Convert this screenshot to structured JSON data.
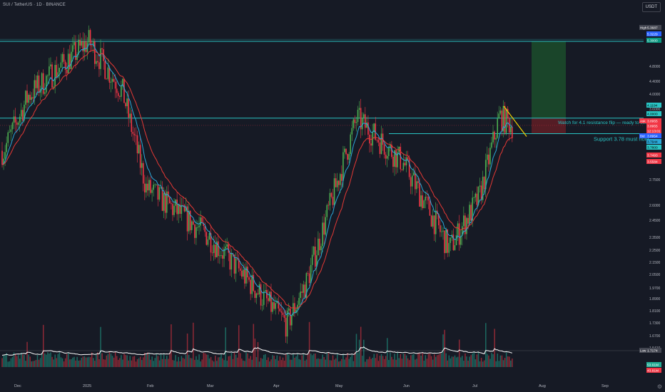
{
  "header": {
    "title": "SUI / TetherUS · 1D · BINANCE",
    "currency_label": "USDT"
  },
  "colors": {
    "background": "#161a25",
    "up": "#22ab94",
    "up_body": "#4caf50",
    "down": "#f23645",
    "ma_fast": "#2aa8d8",
    "ma_slow": "#e53935",
    "resistance_line": "#29c4c4",
    "trend_line": "#f5d300",
    "volume_ma": "#ffffff",
    "profit_zone": "#1b4d2c",
    "stop_zone": "#5c1e26"
  },
  "chart_data": {
    "type": "candlestick",
    "symbol": "SUI / TetherUS",
    "interval": "1D",
    "exchange": "BINANCE",
    "ylim": [
      1.52,
      5.44
    ],
    "price_scale": "log",
    "grid": false,
    "x_tick_labels": [
      "Dec",
      "2025",
      "Feb",
      "Mar",
      "Apr",
      "May",
      "Jun",
      "Jul",
      "Aug",
      "Sep"
    ],
    "y_tick_labels": [
      "5.2000",
      "4.8000",
      "4.4000",
      "4.0000",
      "3.6000",
      "3.2000",
      "2.9000",
      "2.7500",
      "2.6000",
      "2.4500",
      "2.3500",
      "2.2500",
      "2.1500",
      "2.0500",
      "1.9700",
      "1.8900",
      "1.8100",
      "1.7300",
      "1.6700",
      "1.5410"
    ],
    "ohlc_anchors": [
      {
        "date": "Dec",
        "close": 3.55
      },
      {
        "date": "mid Dec",
        "close": 4.35
      },
      {
        "date": "Jan 5",
        "close": 5.3
      },
      {
        "date": "late Jan",
        "close": 4.4
      },
      {
        "date": "Feb",
        "close": 3.1
      },
      {
        "date": "Mar",
        "close": 2.6
      },
      {
        "date": "Apr 7",
        "close": 1.88
      },
      {
        "date": "Apr 20",
        "close": 2.2
      },
      {
        "date": "May 5",
        "close": 4.0
      },
      {
        "date": "Jun",
        "close": 3.4
      },
      {
        "date": "Jun 22",
        "close": 2.48
      },
      {
        "date": "Jul 10",
        "close": 3.0
      },
      {
        "date": "Jul 20",
        "close": 4.03
      },
      {
        "date": "last",
        "close": 3.8955
      }
    ],
    "horizontal_levels": [
      {
        "label": "",
        "price": 5.3
      },
      {
        "label": "Watch for 4.1 resistance flip — ready to send",
        "price": 4.0
      },
      {
        "label": "Support 3.78 must hold",
        "price": 3.78
      }
    ],
    "price_labels": [
      {
        "tag": "High",
        "value": "5.3687"
      },
      {
        "tag": "",
        "value": "5.3229"
      },
      {
        "tag": "",
        "value": "5.3000"
      },
      {
        "tag": "",
        "value": "4.1194"
      },
      {
        "tag": "",
        "value": "4.0000"
      },
      {
        "tag": "Ask",
        "value": "3.8955"
      },
      {
        "tag": "",
        "value": "3.8955"
      },
      {
        "tag": "",
        "value": "12:13:01"
      },
      {
        "tag": "Bid",
        "value": "3.8954"
      },
      {
        "tag": "",
        "value": "3.7944"
      },
      {
        "tag": "",
        "value": "3.7800"
      },
      {
        "tag": "",
        "value": "3.7493"
      },
      {
        "tag": "",
        "value": "3.5584"
      },
      {
        "tag": "Low",
        "value": "1.7174"
      },
      {
        "tag": "",
        "value": "53.61M"
      },
      {
        "tag": "",
        "value": "43.81M"
      }
    ],
    "series": [
      {
        "name": "",
        "type": "ma_fast"
      },
      {
        "name": "",
        "type": "ma_slow"
      },
      {
        "name": "",
        "type": "volume"
      }
    ]
  }
}
